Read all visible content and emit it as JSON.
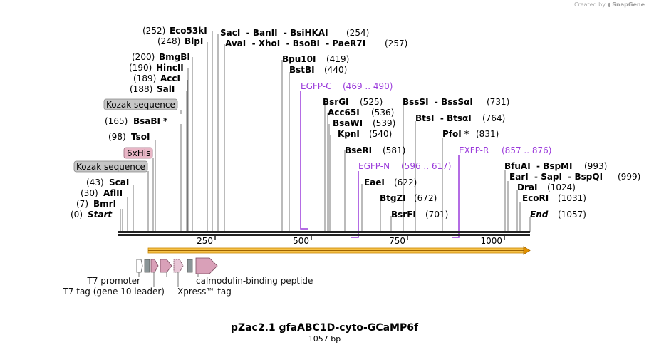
{
  "credit": {
    "prefix": "Created by",
    "brand": "SnapGene"
  },
  "title": "pZac2.1 gfaABC1D-cyto-GCaMP6f",
  "subtitle": "1057 bp",
  "sequence_length": 1057,
  "ruler_ticks": [
    "250",
    "500",
    "750",
    "1000"
  ],
  "sites": [
    {
      "id": "start",
      "pos_label": "(0)",
      "name": "Start",
      "bp": 0,
      "kind": "end"
    },
    {
      "id": "bmri",
      "pos_label": "(7)",
      "name": "BmrI",
      "bp": 7
    },
    {
      "id": "aflii",
      "pos_label": "(30)",
      "name": "AflII",
      "bp": 30
    },
    {
      "id": "scai",
      "pos_label": "(43)",
      "name": "ScaI",
      "bp": 43
    },
    {
      "id": "tsoi",
      "pos_label": "(98)",
      "name": "TsoI",
      "bp": 98
    },
    {
      "id": "bsabi",
      "pos_label": "(165)",
      "name": "BsaBI *",
      "bp": 165
    },
    {
      "id": "sali",
      "pos_label": "(188)",
      "name": "SalI",
      "bp": 188
    },
    {
      "id": "acci",
      "pos_label": "(189)",
      "name": "AccI",
      "bp": 189
    },
    {
      "id": "hincii",
      "pos_label": "(190)",
      "name": "HincII",
      "bp": 190
    },
    {
      "id": "bmgbi",
      "pos_label": "(200)",
      "name": "BmgBI",
      "bp": 200
    },
    {
      "id": "blpi",
      "pos_label": "(248)",
      "name": "BlpI",
      "bp": 248
    },
    {
      "id": "eco53ki",
      "pos_label": "(252)",
      "name": "Eco53kI",
      "bp": 252
    },
    {
      "id": "saci",
      "pos_label": "(254)",
      "name": "SacI  - BanII  - BsiHKAI",
      "bp": 254
    },
    {
      "id": "avai",
      "pos_label": "(257)",
      "name": "AvaI  - XhoI  - BsoBI  - PaeR7I",
      "bp": 257
    },
    {
      "id": "bpu10i",
      "pos_label": "(419)",
      "name": "Bpu10I",
      "bp": 419
    },
    {
      "id": "bstbi",
      "pos_label": "(440)",
      "name": "BstBI",
      "bp": 440
    },
    {
      "id": "bsrgi",
      "pos_label": "(525)",
      "name": "BsrGI",
      "bp": 525
    },
    {
      "id": "acc65i",
      "pos_label": "(536)",
      "name": "Acc65I",
      "bp": 536
    },
    {
      "id": "bsawi",
      "pos_label": "(539)",
      "name": "BsaWI",
      "bp": 539
    },
    {
      "id": "kpni",
      "pos_label": "(540)",
      "name": "KpnI",
      "bp": 540
    },
    {
      "id": "bseri",
      "pos_label": "(581)",
      "name": "BseRI",
      "bp": 581
    },
    {
      "id": "eaei",
      "pos_label": "(622)",
      "name": "EaeI",
      "bp": 622
    },
    {
      "id": "btgzi",
      "pos_label": "(672)",
      "name": "BtgZI",
      "bp": 672
    },
    {
      "id": "bsrfi",
      "pos_label": "(701)",
      "name": "BsrFI",
      "bp": 701
    },
    {
      "id": "bsssi",
      "pos_label": "(731)",
      "name": "BssSI  - BssSαI",
      "bp": 731
    },
    {
      "id": "btsi",
      "pos_label": "(764)",
      "name": "BtsI  - BtsαI",
      "bp": 764
    },
    {
      "id": "pfoi",
      "pos_label": "(831)",
      "name": "PfoI *",
      "bp": 831
    },
    {
      "id": "bfuai",
      "pos_label": "(993)",
      "name": "BfuAI  - BspMI",
      "bp": 993
    },
    {
      "id": "eari",
      "pos_label": "(999)",
      "name": "EarI  - SapI  - BspQI",
      "bp": 999
    },
    {
      "id": "drai",
      "pos_label": "(1024)",
      "name": "DraI",
      "bp": 1024
    },
    {
      "id": "ecori",
      "pos_label": "(1031)",
      "name": "EcoRI",
      "bp": 1031
    },
    {
      "id": "end",
      "pos_label": "(1057)",
      "name": "End",
      "bp": 1057,
      "kind": "end"
    }
  ],
  "primers": [
    {
      "id": "egfp-c",
      "name": "EGFP-C",
      "range": "(469 .. 490)",
      "bp": 469
    },
    {
      "id": "egfp-n",
      "name": "EGFP-N",
      "range": "(596 .. 617)",
      "bp": 596
    },
    {
      "id": "exfp-r",
      "name": "EXFP-R",
      "range": "(857 .. 876)",
      "bp": 857
    }
  ],
  "feature_boxes": [
    {
      "id": "kozak-1",
      "label": "Kozak sequence",
      "color": "#c6c6c6"
    },
    {
      "id": "six-his",
      "label": "6xHis",
      "color": "#e8b6c6"
    },
    {
      "id": "kozak-2",
      "label": "Kozak sequence",
      "color": "#c6c6c6"
    }
  ],
  "features": [
    {
      "id": "t7-promoter",
      "label": "T7 promoter"
    },
    {
      "id": "t7-tag",
      "label": "T7 tag (gene 10 leader)"
    },
    {
      "id": "xpress-tag",
      "label": "Xpress™ tag"
    },
    {
      "id": "calmodulin",
      "label": "calmodulin-binding peptide"
    }
  ],
  "colors": {
    "backbone": "#222222",
    "orf": "#f0a818",
    "primer": "#9b3bdb",
    "feature_pink": "#d9a0b8",
    "feature_gray": "#8b9597"
  }
}
